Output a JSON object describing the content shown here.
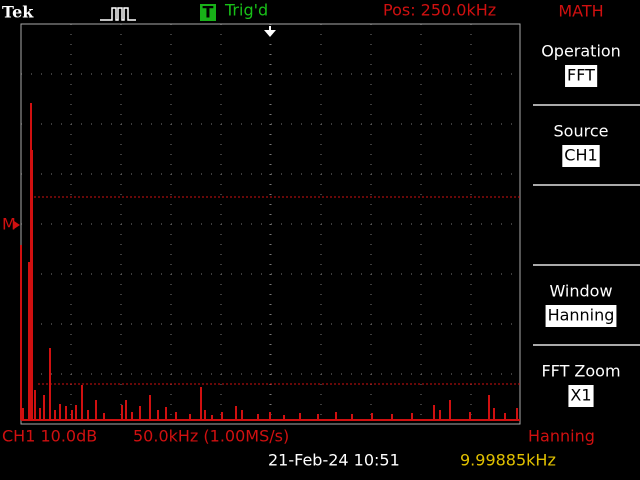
{
  "header": {
    "brand": "Tek",
    "trigger_icon": "T",
    "trigger_status": "Trig'd",
    "position": "Pos: 250.0kHz",
    "menu_title": "MATH"
  },
  "menu": [
    {
      "label": "Operation",
      "value": "FFT"
    },
    {
      "label": "Source",
      "value": "CH1"
    },
    {
      "label": "Window",
      "value": "Hanning"
    },
    {
      "label": "FFT Zoom",
      "value": "X1"
    }
  ],
  "marker": "M",
  "footer": {
    "channel": "CH1 10.0dB",
    "span": "50.0kHz (1.00MS/s)",
    "window": "Hanning",
    "datetime": "21-Feb-24 10:51",
    "frequency": "9.99885kHz"
  }
}
